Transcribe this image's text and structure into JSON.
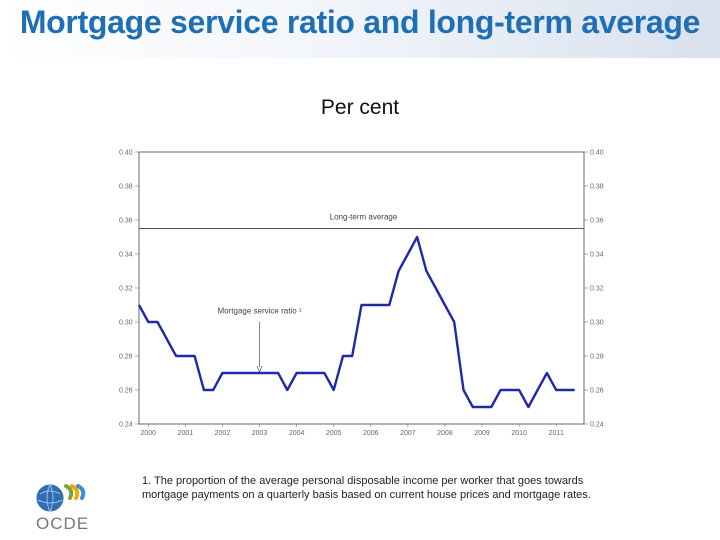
{
  "slide": {
    "title": "Mortgage service ratio and long-term average",
    "subtitle": "Per cent",
    "footnote": "1. The proportion of the average personal disposable income per worker that goes towards mortgage payments on a quarterly basis based on current house prices and mortgage rates.",
    "logo_text": "OCDE"
  },
  "colors": {
    "title": "#1f6fb4",
    "series": "#1f2aa8",
    "avg_line": "#555555"
  },
  "chart_data": {
    "type": "line",
    "title": "",
    "xlabel": "",
    "ylabel": "Per cent",
    "ylim": [
      0.24,
      0.4
    ],
    "xlim": [
      1999.75,
      2011.75
    ],
    "yticks": [
      0.4,
      0.38,
      0.36,
      0.34,
      0.32,
      0.3,
      0.28,
      0.26,
      0.24
    ],
    "ytick_labels": [
      "0.40",
      "0.38",
      "0.36",
      "0.34",
      "0.32",
      "0.30",
      "0.28",
      "0.26",
      "0.24"
    ],
    "right_ytick_labels": [
      "0.40",
      "0.38",
      "0.36",
      "0.34",
      "0.32",
      "0.30",
      "0.28",
      "0.26",
      "0.24"
    ],
    "xticks": [
      2000,
      2001,
      2002,
      2003,
      2004,
      2005,
      2006,
      2007,
      2008,
      2009,
      2010,
      2011
    ],
    "xtick_labels": [
      "2000",
      "2001",
      "2002",
      "2003",
      "2004",
      "2005",
      "2006",
      "2007",
      "2008",
      "2009",
      "2010",
      "2011"
    ],
    "reference_line": {
      "label": "Long-term average",
      "value": 0.355
    },
    "annotation": {
      "label": "Mortgage service ratio ¹",
      "x": 2003.0,
      "y": 0.27
    },
    "series": [
      {
        "name": "Mortgage service ratio",
        "x": [
          1999.75,
          2000.0,
          2000.25,
          2000.5,
          2000.75,
          2001.0,
          2001.25,
          2001.5,
          2001.75,
          2002.0,
          2002.25,
          2002.5,
          2002.75,
          2003.0,
          2003.25,
          2003.5,
          2003.75,
          2004.0,
          2004.25,
          2004.5,
          2004.75,
          2005.0,
          2005.25,
          2005.5,
          2005.75,
          2006.0,
          2006.25,
          2006.5,
          2006.75,
          2007.0,
          2007.25,
          2007.5,
          2007.75,
          2008.0,
          2008.25,
          2008.5,
          2008.75,
          2009.0,
          2009.25,
          2009.5,
          2009.75,
          2010.0,
          2010.25,
          2010.5,
          2010.75,
          2011.0,
          2011.25,
          2011.5
        ],
        "values": [
          0.31,
          0.3,
          0.3,
          0.29,
          0.28,
          0.28,
          0.28,
          0.26,
          0.26,
          0.27,
          0.27,
          0.27,
          0.27,
          0.27,
          0.27,
          0.27,
          0.26,
          0.27,
          0.27,
          0.27,
          0.27,
          0.26,
          0.28,
          0.28,
          0.31,
          0.31,
          0.31,
          0.31,
          0.33,
          0.34,
          0.35,
          0.33,
          0.32,
          0.31,
          0.3,
          0.26,
          0.25,
          0.25,
          0.25,
          0.26,
          0.26,
          0.26,
          0.25,
          0.26,
          0.27,
          0.26,
          0.26,
          0.26
        ]
      }
    ]
  }
}
